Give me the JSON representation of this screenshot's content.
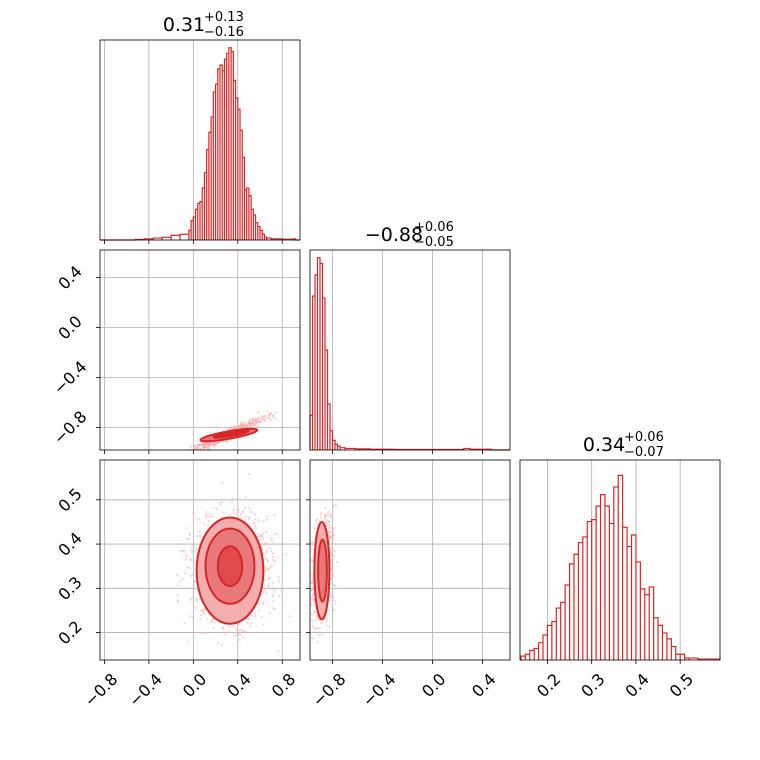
{
  "chart_data": [
    {
      "type": "histogram",
      "panel": "1d-param-1",
      "title": {
        "value": "0.31",
        "plus": "+0.13",
        "minus": "−0.16"
      },
      "xlim": [
        -0.84,
        0.96
      ],
      "ylim": [
        0,
        1.04
      ],
      "hist": [
        [
          -0.52,
          0.003
        ],
        [
          -0.44,
          0.006
        ],
        [
          -0.36,
          0.01
        ],
        [
          -0.28,
          0.014
        ],
        [
          -0.2,
          0.024
        ],
        [
          -0.12,
          0.03
        ],
        [
          -0.04,
          0.05
        ],
        [
          -0.02,
          0.1
        ],
        [
          0.0,
          0.12
        ],
        [
          0.02,
          0.16
        ],
        [
          0.04,
          0.19
        ],
        [
          0.06,
          0.2
        ],
        [
          0.08,
          0.27
        ],
        [
          0.1,
          0.35
        ],
        [
          0.12,
          0.47
        ],
        [
          0.14,
          0.56
        ],
        [
          0.16,
          0.64
        ],
        [
          0.18,
          0.77
        ],
        [
          0.2,
          0.81
        ],
        [
          0.22,
          0.89
        ],
        [
          0.24,
          0.91
        ],
        [
          0.26,
          0.88
        ],
        [
          0.28,
          0.94
        ],
        [
          0.3,
          0.97
        ],
        [
          0.32,
          1.0
        ],
        [
          0.34,
          0.98
        ],
        [
          0.36,
          0.83
        ],
        [
          0.38,
          0.74
        ],
        [
          0.4,
          0.68
        ],
        [
          0.42,
          0.57
        ],
        [
          0.44,
          0.43
        ],
        [
          0.46,
          0.26
        ],
        [
          0.48,
          0.27
        ],
        [
          0.5,
          0.23
        ],
        [
          0.52,
          0.16
        ],
        [
          0.54,
          0.13
        ],
        [
          0.56,
          0.09
        ],
        [
          0.58,
          0.07
        ],
        [
          0.6,
          0.05
        ],
        [
          0.62,
          0.03
        ],
        [
          0.64,
          0.015
        ],
        [
          0.66,
          0.01
        ],
        [
          0.7,
          0.006
        ],
        [
          0.8,
          0.004
        ],
        [
          0.9,
          0.006
        ]
      ]
    },
    {
      "type": "histogram",
      "panel": "1d-param-2",
      "title": {
        "value": "−0.88",
        "plus": "+0.06",
        "minus": "−0.05"
      },
      "xlim": [
        -0.98,
        0.62
      ],
      "ylim": [
        0,
        1.04
      ],
      "hist": [
        [
          -0.98,
          0.18
        ],
        [
          -0.96,
          0.8
        ],
        [
          -0.94,
          0.91
        ],
        [
          -0.92,
          1.0
        ],
        [
          -0.9,
          0.97
        ],
        [
          -0.88,
          0.79
        ],
        [
          -0.86,
          0.52
        ],
        [
          -0.84,
          0.24
        ],
        [
          -0.82,
          0.1
        ],
        [
          -0.8,
          0.05
        ],
        [
          -0.78,
          0.03
        ],
        [
          -0.76,
          0.02
        ],
        [
          -0.74,
          0.012
        ],
        [
          -0.7,
          0.008
        ],
        [
          -0.62,
          0.006
        ],
        [
          -0.5,
          0.004
        ],
        [
          -0.3,
          0.003
        ],
        [
          0.0,
          0.003
        ],
        [
          0.25,
          0.008
        ],
        [
          0.3,
          0.004
        ],
        [
          0.45,
          0.004
        ]
      ]
    },
    {
      "type": "histogram",
      "panel": "1d-param-3",
      "title": {
        "value": "0.34",
        "plus": "+0.06",
        "minus": "−0.07"
      },
      "xlim": [
        0.138,
        0.59
      ],
      "ylim": [
        0,
        1.04
      ],
      "hist": [
        [
          0.14,
          0.02
        ],
        [
          0.15,
          0.03
        ],
        [
          0.16,
          0.05
        ],
        [
          0.17,
          0.06
        ],
        [
          0.18,
          0.09
        ],
        [
          0.19,
          0.13
        ],
        [
          0.2,
          0.18
        ],
        [
          0.21,
          0.2
        ],
        [
          0.22,
          0.27
        ],
        [
          0.23,
          0.3
        ],
        [
          0.24,
          0.39
        ],
        [
          0.25,
          0.5
        ],
        [
          0.26,
          0.55
        ],
        [
          0.27,
          0.61
        ],
        [
          0.28,
          0.64
        ],
        [
          0.29,
          0.72
        ],
        [
          0.3,
          0.73
        ],
        [
          0.31,
          0.8
        ],
        [
          0.32,
          0.86
        ],
        [
          0.33,
          0.8
        ],
        [
          0.34,
          0.71
        ],
        [
          0.35,
          0.9
        ],
        [
          0.36,
          0.96
        ],
        [
          0.37,
          0.69
        ],
        [
          0.38,
          0.59
        ],
        [
          0.39,
          0.65
        ],
        [
          0.4,
          0.51
        ],
        [
          0.41,
          0.37
        ],
        [
          0.42,
          0.34
        ],
        [
          0.43,
          0.38
        ],
        [
          0.44,
          0.22
        ],
        [
          0.45,
          0.18
        ],
        [
          0.46,
          0.14
        ],
        [
          0.47,
          0.11
        ],
        [
          0.48,
          0.07
        ],
        [
          0.49,
          0.03
        ],
        [
          0.5,
          0.03
        ],
        [
          0.51,
          0.01
        ],
        [
          0.52,
          0.01
        ],
        [
          0.54,
          0.005
        ],
        [
          0.56,
          0.005
        ],
        [
          0.58,
          0.005
        ]
      ]
    },
    {
      "type": "scatter",
      "panel": "2d-param1-vs-param2",
      "xlim": [
        -0.84,
        0.96
      ],
      "ylim": [
        -0.98,
        0.62
      ],
      "contour_center": [
        0.3,
        -0.86
      ]
    },
    {
      "type": "scatter",
      "panel": "2d-param1-vs-param3",
      "xlim": [
        -0.84,
        0.96
      ],
      "ylim": [
        0.138,
        0.59
      ],
      "contour_center": [
        0.33,
        0.34
      ]
    },
    {
      "type": "scatter",
      "panel": "2d-param2-vs-param3",
      "xlim": [
        -0.98,
        0.62
      ],
      "ylim": [
        0.138,
        0.59
      ],
      "contour_center": [
        -0.88,
        0.34
      ]
    }
  ],
  "ticks": {
    "p1": [
      "−0.8",
      "−0.4",
      "0.0",
      "0.4",
      "0.8"
    ],
    "p1_values": [
      -0.8,
      -0.4,
      0.0,
      0.4,
      0.8
    ],
    "p2": [
      "−0.8",
      "−0.4",
      "0.0",
      "0.4"
    ],
    "p2_values": [
      -0.8,
      -0.4,
      0.0,
      0.4
    ],
    "p3": [
      "0.2",
      "0.3",
      "0.4",
      "0.5"
    ],
    "p3_values": [
      0.2,
      0.3,
      0.4,
      0.5
    ]
  },
  "colors": {
    "accent": "#d62728",
    "accent_light": "#f4aeae",
    "accent_mid": "#e9787a",
    "grid": "#b0b0b0"
  }
}
